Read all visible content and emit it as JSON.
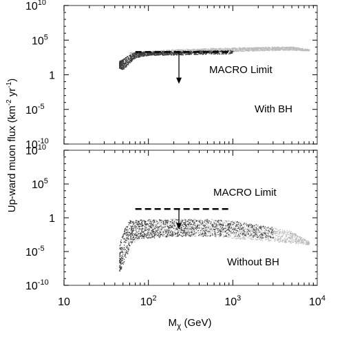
{
  "figure": {
    "ylabel_main": "Up-ward muon flux (km",
    "ylabel_exp1": "-2",
    "ylabel_mid": " yr",
    "ylabel_exp2": "-1",
    "ylabel_end": ")",
    "xlabel_main": "M",
    "xlabel_sub": "χ",
    "xlabel_unit": " (GeV)"
  },
  "chart_data": [
    {
      "type": "scatter",
      "panel": "top",
      "annotations": [
        "MACRO Limit",
        "With BH"
      ],
      "x_scale": "log",
      "y_scale": "log",
      "xlim": [
        10,
        10000
      ],
      "ylim": [
        1e-10,
        10000000000.0
      ],
      "y_ticks": [
        {
          "base": "10",
          "exp": "10",
          "value": 10000000000.0
        },
        {
          "base": "10",
          "exp": "5",
          "value": 100000.0
        },
        {
          "base": "1",
          "exp": "",
          "value": 1
        },
        {
          "base": "10",
          "exp": "-5",
          "value": 1e-05
        },
        {
          "base": "10",
          "exp": "-10",
          "value": 1e-10
        }
      ],
      "macro_limit": {
        "x_range": [
          70,
          900
        ],
        "y": 2000
      },
      "macro_arrow": {
        "x": 230,
        "from_y": 2000,
        "to_y": 0.05
      },
      "series": [
        {
          "shade": "light",
          "x": [
            60,
            100,
            200,
            500,
            1000,
            3000,
            5000,
            8000
          ],
          "y_low": [
            300,
            800,
            1500,
            2000,
            2500,
            3500,
            4000,
            3000
          ],
          "y_high": [
            2000,
            3000,
            5000,
            7000,
            9000,
            12000,
            12000,
            5000
          ]
        },
        {
          "shade": "dark",
          "x": [
            45,
            50,
            55,
            60,
            70,
            100,
            200,
            500,
            1000
          ],
          "y_low": [
            10,
            5,
            20,
            50,
            300,
            700,
            800,
            1000,
            1200
          ],
          "y_high": [
            100,
            200,
            500,
            800,
            2000,
            2500,
            3000,
            3500,
            4000
          ]
        }
      ]
    },
    {
      "type": "scatter",
      "panel": "bottom",
      "annotations": [
        "MACRO Limit",
        "Without BH"
      ],
      "x_scale": "log",
      "y_scale": "log",
      "xlim": [
        10,
        10000
      ],
      "ylim": [
        1e-10,
        10000000000.0
      ],
      "x_ticks": [
        {
          "base": "10",
          "exp": "",
          "value": 10
        },
        {
          "base": "10",
          "exp": "2",
          "value": 100
        },
        {
          "base": "10",
          "exp": "3",
          "value": 1000
        },
        {
          "base": "10",
          "exp": "4",
          "value": 10000
        }
      ],
      "y_ticks": [
        {
          "base": "10",
          "exp": "10",
          "value": 10000000000.0
        },
        {
          "base": "10",
          "exp": "5",
          "value": 100000.0
        },
        {
          "base": "1",
          "exp": "",
          "value": 1
        },
        {
          "base": "10",
          "exp": "-5",
          "value": 1e-05
        },
        {
          "base": "10",
          "exp": "-10",
          "value": 1e-10
        }
      ],
      "macro_limit": {
        "x_range": [
          70,
          900
        ],
        "y": 20
      },
      "macro_arrow": {
        "x": 230,
        "from_y": 20,
        "to_y": 0.02
      },
      "series": [
        {
          "shade": "light",
          "x": [
            55,
            60,
            80,
            100,
            200,
            500,
            1000,
            2000,
            5000,
            8000
          ],
          "y_low": [
            1e-06,
            0.0001,
            0.001,
            0.001,
            0.002,
            0.002,
            0.001,
            0.0005,
            0.0002,
            0.0001
          ],
          "y_high": [
            0.01,
            0.2,
            0.6,
            0.6,
            0.8,
            0.8,
            0.4,
            0.1,
            0.01,
            0.0003
          ]
        },
        {
          "shade": "dark",
          "x": [
            45,
            50,
            55,
            60,
            70,
            100,
            200,
            500,
            1000,
            3000
          ],
          "y_low": [
            1e-08,
            1e-07,
            1e-06,
            0.0001,
            0.001,
            0.001,
            0.002,
            0.002,
            0.002,
            0.001
          ],
          "y_high": [
            0.0001,
            0.01,
            0.1,
            0.5,
            0.5,
            0.6,
            0.7,
            0.6,
            0.4,
            0.05
          ]
        }
      ]
    }
  ]
}
